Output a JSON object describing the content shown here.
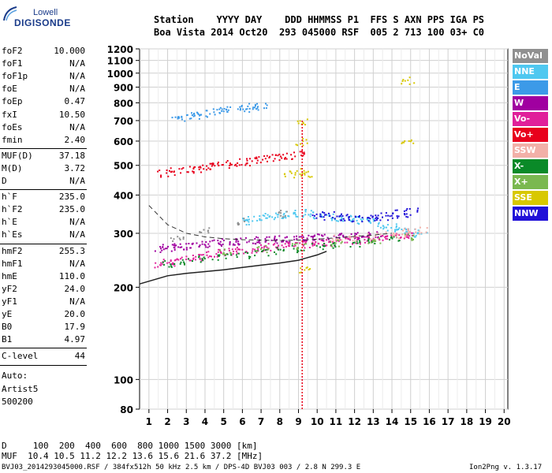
{
  "logo": {
    "line1": "Lowell",
    "line2": "DIGISONDE"
  },
  "header": {
    "line1": "Station    YYYY DAY    DDD HHMMSS P1  FFS S AXN PPS IGA PS",
    "line2": "Boa Vista 2014 Oct20  293 045000 RSF  005 2 713 100 03+ C0"
  },
  "params_group1": [
    {
      "label": "foF2",
      "value": "10.000"
    },
    {
      "label": "foF1",
      "value": "N/A"
    },
    {
      "label": "foF1p",
      "value": "N/A"
    },
    {
      "label": "foE",
      "value": "N/A"
    },
    {
      "label": "foEp",
      "value": "0.47"
    },
    {
      "label": "fxI",
      "value": "10.50"
    },
    {
      "label": "foEs",
      "value": "N/A"
    },
    {
      "label": "fmin",
      "value": "2.40"
    }
  ],
  "params_group2": [
    {
      "label": "MUF(D)",
      "value": "37.18"
    },
    {
      "label": "M(D)",
      "value": "3.72"
    },
    {
      "label": "D",
      "value": "N/A"
    }
  ],
  "params_group3": [
    {
      "label": "h`F",
      "value": "235.0"
    },
    {
      "label": "h`F2",
      "value": "235.0"
    },
    {
      "label": "h`E",
      "value": "N/A"
    },
    {
      "label": "h`Es",
      "value": "N/A"
    }
  ],
  "params_group4": [
    {
      "label": "hmF2",
      "value": "255.3"
    },
    {
      "label": "hmF1",
      "value": "N/A"
    },
    {
      "label": "hmE",
      "value": "110.0"
    },
    {
      "label": "yF2",
      "value": "24.0"
    },
    {
      "label": "yF1",
      "value": "N/A"
    },
    {
      "label": "yE",
      "value": "20.0"
    },
    {
      "label": "B0",
      "value": "17.9"
    },
    {
      "label": "B1",
      "value": "4.97"
    }
  ],
  "clevel": {
    "label": "C-level",
    "value": "44"
  },
  "auto": {
    "line1": "Auto:",
    "line2": "Artist5",
    "line3": "500200"
  },
  "legend": [
    {
      "label": "NoVal",
      "color": "#909090"
    },
    {
      "label": "NNE",
      "color": "#4fc8f0"
    },
    {
      "label": "E",
      "color": "#3c9ae8"
    },
    {
      "label": "W",
      "color": "#a000a0"
    },
    {
      "label": "Vo-",
      "color": "#e0209a"
    },
    {
      "label": "Vo+",
      "color": "#e8001c"
    },
    {
      "label": "SSW",
      "color": "#f2b0a8"
    },
    {
      "label": "X-",
      "color": "#0a8a28"
    },
    {
      "label": "X+",
      "color": "#7ab850"
    },
    {
      "label": "SSE",
      "color": "#d8c800"
    },
    {
      "label": "NNW",
      "color": "#2010d8"
    }
  ],
  "bottom": {
    "line1": "D     100  200  400  600  800 1000 1500 3000 [km]",
    "line2": "MUF  10.4 10.5 11.2 12.2 13.6 15.6 21.6 37.2 [MHz]"
  },
  "footer": {
    "left": "BVJ03_2014293045000.RSF / 384fx512h 50 kHz 2.5 km / DPS-4D BVJ03 003 / 2.8 N 299.3 E",
    "right": "Ion2Png v. 1.3.17"
  },
  "chart_data": {
    "type": "scatter",
    "title": "",
    "xlabel": "",
    "ylabel": "",
    "x_ticks": [
      1,
      2,
      3,
      4,
      5,
      6,
      7,
      8,
      9,
      10,
      11,
      12,
      13,
      14,
      15,
      16,
      17,
      18,
      19,
      20
    ],
    "y_ticks": [
      80,
      100,
      200,
      300,
      400,
      500,
      600,
      700,
      800,
      900,
      1000,
      1100,
      1200
    ],
    "xlim": [
      0.5,
      20.2
    ],
    "ylim": [
      80,
      1200
    ],
    "y_scale": "log",
    "grid": true,
    "series": [
      {
        "name": "Vo-",
        "color": "#e0209a",
        "x": [
          1.6,
          2,
          2.5,
          3,
          3.5,
          4,
          4.5,
          5,
          5.5,
          6,
          6.5,
          7,
          7.5,
          8,
          8.5,
          9,
          9.5,
          10,
          10.5,
          11,
          11.5,
          12,
          12.5,
          13,
          13.5,
          14,
          14.5,
          15
        ],
        "y": [
          238,
          242,
          245,
          248,
          252,
          255,
          258,
          260,
          262,
          265,
          267,
          270,
          272,
          274,
          275,
          277,
          278,
          280,
          281,
          282,
          284,
          286,
          288,
          290,
          292,
          294,
          296,
          298
        ]
      },
      {
        "name": "Vo+",
        "color": "#e8001c",
        "x": [
          1.8,
          2.5,
          3,
          3.5,
          4,
          4.5,
          5,
          5.5,
          6,
          6.5,
          7,
          7.5,
          8,
          8.5,
          9
        ],
        "y": [
          472,
          480,
          485,
          490,
          495,
          500,
          505,
          510,
          515,
          520,
          525,
          530,
          535,
          540,
          548
        ]
      },
      {
        "name": "W",
        "color": "#a000a0",
        "x": [
          1.6,
          2,
          2.5,
          3,
          3.5,
          4,
          4.5,
          5,
          5.5,
          6,
          6.5,
          7,
          7.5,
          8,
          8.5,
          9,
          9.5,
          10,
          10.5,
          11,
          11.5,
          12,
          12.5,
          13
        ],
        "y": [
          268,
          270,
          272,
          274,
          276,
          278,
          280,
          282,
          283,
          284,
          285,
          286,
          287,
          288,
          289,
          290,
          291,
          292,
          292,
          293,
          294,
          295,
          296,
          297
        ]
      },
      {
        "name": "X-",
        "color": "#0a8a28",
        "x": [
          2,
          3,
          4,
          5,
          6,
          7,
          8,
          9,
          10,
          11,
          12,
          13,
          14
        ],
        "y": [
          240,
          244,
          248,
          252,
          256,
          260,
          264,
          268,
          272,
          276,
          280,
          284,
          288
        ]
      },
      {
        "name": "E",
        "color": "#3c9ae8",
        "x": [
          2.5,
          3,
          3.5,
          4,
          4.5,
          5,
          5.5,
          6,
          6.5,
          7
        ],
        "y": [
          718,
          725,
          732,
          740,
          748,
          755,
          762,
          770,
          778,
          785
        ]
      },
      {
        "name": "NNE",
        "color": "#4fc8f0",
        "x": [
          6,
          6.5,
          7,
          7.5,
          8,
          8.5,
          9,
          9.5,
          10,
          10.5,
          11,
          11.5,
          12,
          12.5,
          13,
          13.5,
          14,
          14.5,
          15,
          15.5
        ],
        "y": [
          330,
          334,
          338,
          342,
          346,
          348,
          350,
          352,
          345,
          340,
          338,
          336,
          334,
          332,
          330,
          320,
          315,
          310,
          305,
          300
        ]
      },
      {
        "name": "NNW",
        "color": "#2010d8",
        "x": [
          10,
          10.5,
          11,
          11.5,
          12,
          12.5,
          13,
          13.5,
          14,
          14.5,
          15
        ],
        "y": [
          340,
          345,
          340,
          338,
          336,
          340,
          338,
          342,
          345,
          350,
          355
        ]
      },
      {
        "name": "SSE",
        "color": "#d8c800",
        "x": [
          8.5,
          9,
          9.5,
          9.2,
          9.2,
          9.2,
          14.8,
          14.8
        ],
        "y": [
          470,
          478,
          470,
          700,
          600,
          230,
          950,
          600
        ]
      },
      {
        "name": "SSW",
        "color": "#f2b0a8",
        "x": [
          11,
          12,
          13,
          14,
          14.5,
          15,
          15.5
        ],
        "y": [
          290,
          292,
          295,
          298,
          300,
          305,
          308
        ]
      },
      {
        "name": "X+",
        "color": "#7ab850",
        "x": [
          5,
          7,
          9,
          11,
          13,
          15
        ],
        "y": [
          262,
          268,
          274,
          280,
          286,
          292
        ]
      },
      {
        "name": "NoVal",
        "color": "#909090",
        "x": [
          2.5,
          4,
          6,
          8
        ],
        "y": [
          290,
          310,
          330,
          350
        ]
      }
    ],
    "profile_curve": {
      "x": [
        0.5,
        2,
        3,
        4,
        5,
        6,
        7,
        8,
        9,
        9.5,
        10,
        10.5
      ],
      "y": [
        205,
        218,
        222,
        225,
        228,
        232,
        236,
        240,
        245,
        250,
        255,
        262
      ]
    },
    "dashed_curve": {
      "x": [
        1,
        2,
        3,
        4,
        5,
        6,
        7,
        8,
        9,
        10,
        11,
        12,
        13,
        14
      ],
      "y": [
        370,
        320,
        300,
        292,
        288,
        286,
        285,
        284,
        285,
        287,
        290,
        293,
        296,
        300
      ]
    }
  }
}
